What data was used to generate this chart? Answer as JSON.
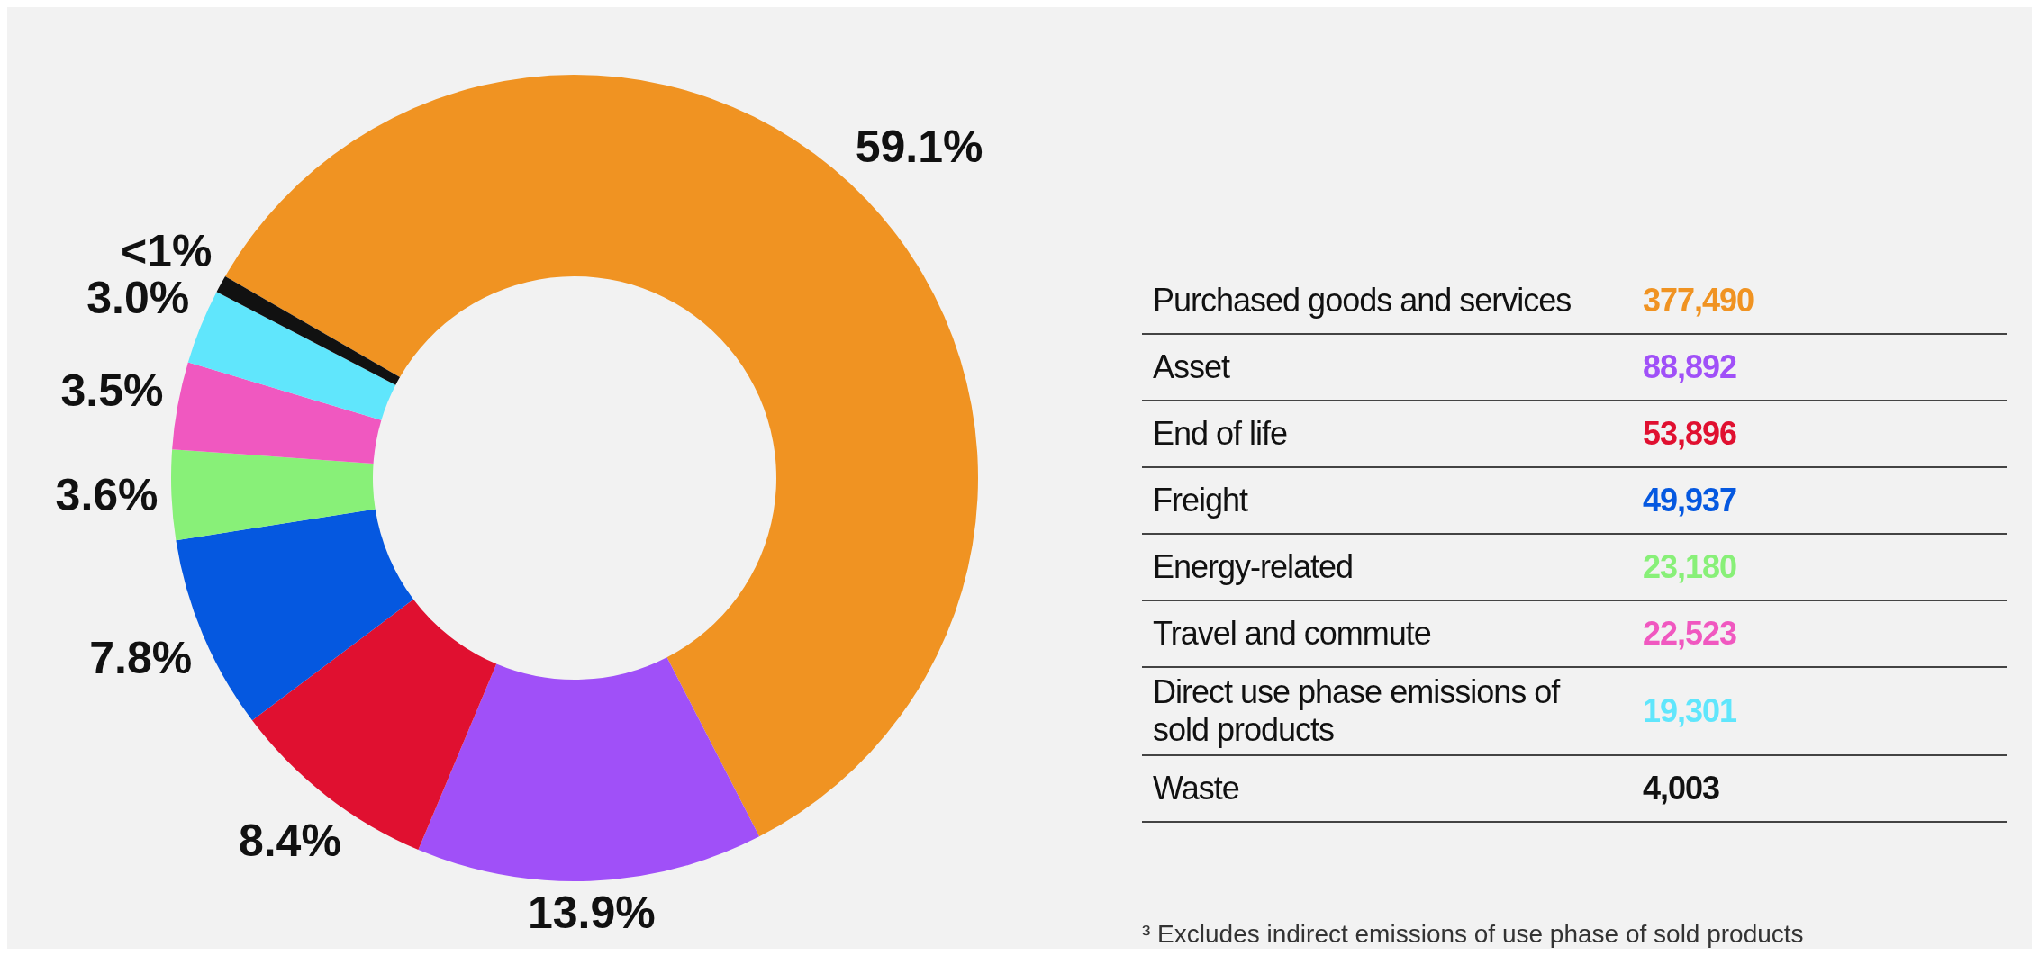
{
  "chart_data": [
    {
      "type": "donut",
      "categories": [
        null,
        null,
        null,
        null,
        null,
        null,
        null,
        null
      ],
      "values": [
        59.1,
        13.9,
        8.4,
        7.8,
        3.6,
        3.5,
        3.0,
        0.7
      ],
      "colors": [
        "#f09322",
        "#a050f8",
        "#e01030",
        "#0558e0",
        "#88f078",
        "#f058c0",
        "#60e6fc",
        "#111111"
      ],
      "value_labels": [
        "59.1%",
        "13.9%",
        "8.4%",
        "7.8%",
        "3.6%",
        "3.5%",
        "3.0%",
        "<1%"
      ]
    },
    {
      "type": "other",
      "categories": [
        "Purchased goods and services",
        "Asset",
        "End of life",
        "Freight",
        "Energy-related",
        "Travel and commute",
        "Direct use phase emissions of sold products",
        "Waste"
      ],
      "values": [
        377490,
        88892,
        53896,
        49937,
        23180,
        22523,
        19301,
        4003
      ],
      "colors": [
        "#f09322",
        "#a050f8",
        "#e01030",
        "#0558e0",
        "#88f078",
        "#f058c0",
        "#60e6fc",
        "#111111"
      ],
      "value_labels": [
        "377,490",
        "88,892",
        "53,896",
        "49,937",
        "23,180",
        "22,523",
        "19,301",
        "4,003"
      ],
      "annotations": [
        "³ Excludes indirect emissions of use phase of sold products"
      ]
    }
  ]
}
